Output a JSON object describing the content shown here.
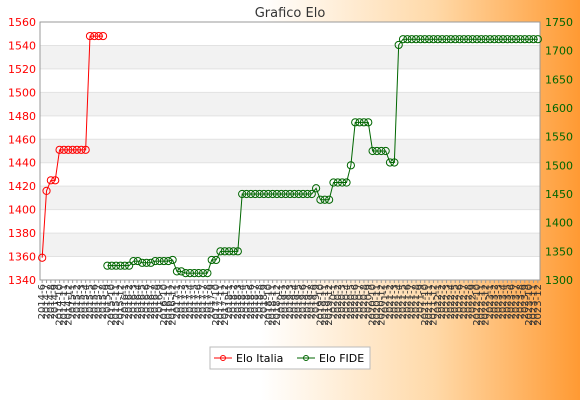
{
  "chart_data": {
    "type": "line",
    "title": "Grafico Elo",
    "legend_position": "bottom",
    "grid": true,
    "y_left": {
      "min": 1340,
      "max": 1560,
      "step": 20,
      "color": "#ff0000"
    },
    "y_right": {
      "min": 1300,
      "max": 1750,
      "step": 50,
      "color": "#006600"
    },
    "x_labels": [
      "2014-6",
      "2014-7",
      "2014-8",
      "2014-9",
      "2014-10",
      "2014-11",
      "2014-12",
      "2015-1",
      "2015-2",
      "2015-3",
      "2015-4",
      "2015-5",
      "2015-6",
      "2015-7",
      "2015-8",
      "2015-9",
      "2015-10",
      "2015-11",
      "2015-12",
      "2016-1",
      "2016-2",
      "2016-3",
      "2016-4",
      "2016-5",
      "2016-6",
      "2016-7",
      "2016-8",
      "2016-9",
      "2016-10",
      "2016-11",
      "2016-12",
      "2017-1",
      "2017-2",
      "2017-3",
      "2017-4",
      "2017-5",
      "2017-6",
      "2017-7",
      "2017-8",
      "2017-9",
      "2017-10",
      "2017-11",
      "2017-12",
      "2018-1",
      "2018-2",
      "2018-3",
      "2018-4",
      "2018-5",
      "2018-6",
      "2018-7",
      "2018-8",
      "2018-9",
      "2018-10",
      "2018-11",
      "2018-12",
      "2019-1",
      "2019-2",
      "2019-3",
      "2019-4",
      "2019-5",
      "2019-6",
      "2019-7",
      "2019-8",
      "2019-9",
      "2019-10",
      "2019-11",
      "2019-12",
      "2020-1",
      "2020-2",
      "2020-3",
      "2020-4",
      "2020-5",
      "2020-6",
      "2020-7",
      "2020-8",
      "2020-9",
      "2020-10",
      "2020-11",
      "2020-12",
      "2021-1",
      "2021-2",
      "2021-3",
      "2021-4",
      "2021-5",
      "2021-6",
      "2021-7",
      "2021-8",
      "2021-9",
      "2021-10",
      "2021-11",
      "2021-12",
      "2022-1",
      "2022-2",
      "2022-3",
      "2022-4",
      "2022-5",
      "2022-6",
      "2022-7",
      "2022-8",
      "2022-9",
      "2022-10",
      "2022-11",
      "2022-12",
      "2023-1",
      "2023-2",
      "2023-3",
      "2023-4",
      "2023-5",
      "2023-6",
      "2023-7",
      "2023-8",
      "2023-9",
      "2023-10",
      "2023-11",
      "2023-12"
    ],
    "series": [
      {
        "name": "Elo Italia",
        "axis": "left",
        "color": "#ff0000",
        "x": [
          0,
          1,
          2,
          3,
          4,
          5,
          6,
          7,
          8,
          9,
          10,
          11,
          12,
          13,
          14
        ],
        "values": [
          1359,
          1416,
          1425,
          1425,
          1451,
          1451,
          1451,
          1451,
          1451,
          1451,
          1451,
          1548,
          1548,
          1548,
          1548
        ]
      },
      {
        "name": "Elo FIDE",
        "axis": "right",
        "color": "#006600",
        "x": [
          15,
          16,
          17,
          18,
          19,
          20,
          21,
          22,
          23,
          24,
          25,
          26,
          27,
          28,
          29,
          30,
          31,
          32,
          33,
          34,
          35,
          36,
          37,
          38,
          39,
          40,
          41,
          42,
          43,
          44,
          45,
          46,
          47,
          48,
          49,
          50,
          51,
          52,
          53,
          54,
          55,
          56,
          57,
          58,
          59,
          60,
          61,
          62,
          63,
          64,
          65,
          66,
          67,
          68,
          69,
          70,
          71,
          72,
          73,
          74,
          75,
          76,
          77,
          78,
          79,
          80,
          81,
          82,
          83,
          84,
          85,
          86,
          87,
          88,
          89,
          90,
          91,
          92,
          93,
          94,
          95,
          96,
          97,
          98,
          99,
          100,
          101,
          102,
          103,
          104,
          105,
          106,
          107,
          108,
          109,
          110,
          111,
          112,
          113,
          114
        ],
        "values": [
          1325,
          1325,
          1325,
          1325,
          1325,
          1325,
          1333,
          1333,
          1330,
          1330,
          1330,
          1333,
          1333,
          1333,
          1333,
          1335,
          1315,
          1315,
          1312,
          1312,
          1312,
          1312,
          1312,
          1312,
          1335,
          1335,
          1350,
          1350,
          1350,
          1350,
          1350,
          1450,
          1450,
          1450,
          1450,
          1450,
          1450,
          1450,
          1450,
          1450,
          1450,
          1450,
          1450,
          1450,
          1450,
          1450,
          1450,
          1450,
          1460,
          1440,
          1440,
          1440,
          1470,
          1470,
          1470,
          1470,
          1500,
          1575,
          1575,
          1575,
          1575,
          1525,
          1525,
          1525,
          1525,
          1505,
          1505,
          1710,
          1720,
          1720,
          1720,
          1720,
          1720,
          1720,
          1720,
          1720,
          1720,
          1720,
          1720,
          1720,
          1720,
          1720,
          1720,
          1720,
          1720,
          1720,
          1720,
          1720,
          1720,
          1720,
          1720,
          1720,
          1720,
          1720,
          1720,
          1720,
          1720,
          1720,
          1720,
          1720
        ]
      }
    ]
  }
}
